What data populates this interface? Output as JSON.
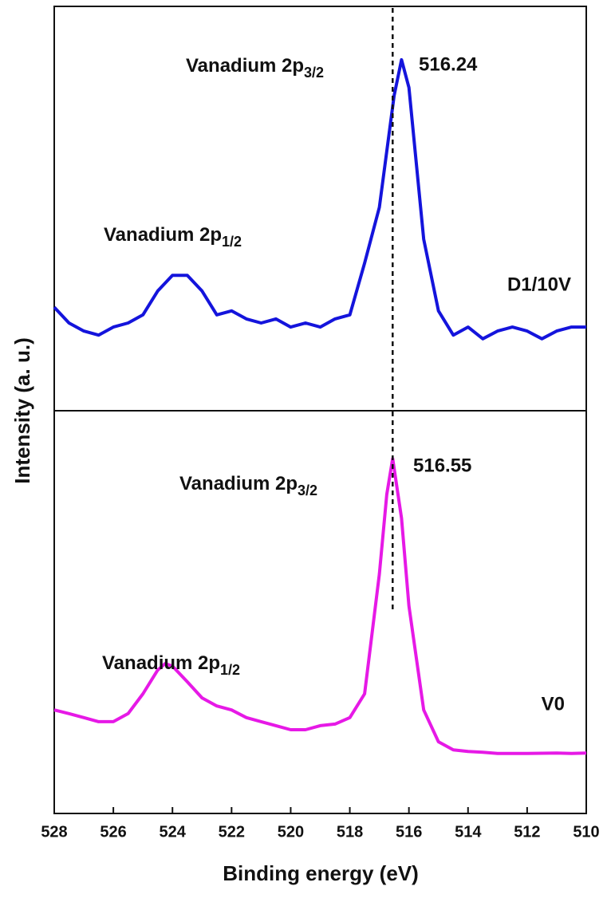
{
  "chart_data": {
    "type": "line",
    "xlabel": "Binding energy (eV)",
    "ylabel": "Intensity (a. u.)",
    "xlim": [
      528,
      510
    ],
    "xticks": [
      528,
      526,
      524,
      522,
      520,
      518,
      516,
      514,
      512,
      510
    ],
    "vline": 516.55,
    "series": [
      {
        "name": "D1/10V",
        "color": "#1414dc",
        "ylim": [
          0,
          100
        ],
        "x": [
          528,
          527.5,
          527,
          526.5,
          526,
          525.5,
          525,
          524.5,
          524,
          523.5,
          523,
          522.5,
          522,
          521.5,
          521,
          520.5,
          520,
          519.5,
          519,
          518.5,
          518,
          517.5,
          517,
          516.5,
          516.25,
          516,
          515.5,
          515,
          514.5,
          514,
          513.5,
          513,
          512.5,
          512,
          511.5,
          511,
          510.5,
          510
        ],
        "values": [
          25.6,
          21.7,
          19.7,
          18.7,
          20.7,
          21.7,
          23.7,
          29.6,
          33.5,
          33.5,
          29.6,
          23.7,
          24.7,
          22.7,
          21.7,
          22.7,
          20.7,
          21.7,
          20.7,
          22.7,
          23.7,
          36.5,
          50.3,
          77.9,
          86.8,
          79.9,
          42.4,
          24.7,
          18.7,
          20.7,
          17.8,
          19.7,
          20.7,
          19.7,
          17.8,
          19.7,
          20.7,
          20.7
        ],
        "peak_label": "516.24",
        "labels": [
          {
            "text": "Vanadium 2p",
            "sub": "3/2"
          },
          {
            "text": "Vanadium 2p",
            "sub": "1/2"
          }
        ]
      },
      {
        "name": "V0",
        "color": "#e619e6",
        "ylim": [
          0,
          100
        ],
        "x": [
          528,
          527.5,
          527,
          526.5,
          526,
          525.5,
          525,
          524.5,
          524.25,
          524,
          523.5,
          523,
          522.5,
          522,
          521.5,
          521,
          520.5,
          520,
          519.5,
          519,
          518.5,
          518,
          517.5,
          517,
          516.75,
          516.55,
          516.25,
          516,
          515.5,
          515,
          514.5,
          514,
          513.5,
          513,
          512,
          511,
          510.5,
          510
        ],
        "values": [
          25.7,
          24.8,
          23.8,
          22.8,
          22.8,
          24.8,
          29.7,
          35.6,
          37.2,
          36.6,
          32.7,
          28.7,
          26.7,
          25.7,
          23.8,
          22.8,
          21.8,
          20.8,
          20.8,
          21.8,
          22.2,
          23.8,
          29.7,
          59.4,
          79.2,
          88.1,
          73.3,
          51.5,
          25.7,
          17.8,
          15.8,
          15.4,
          15.2,
          14.9,
          14.9,
          15.0,
          14.9,
          15.0
        ],
        "peak_label": "516.55",
        "labels": [
          {
            "text": "Vanadium 2p",
            "sub": "3/2"
          },
          {
            "text": "Vanadium 2p",
            "sub": "1/2"
          }
        ]
      }
    ]
  }
}
